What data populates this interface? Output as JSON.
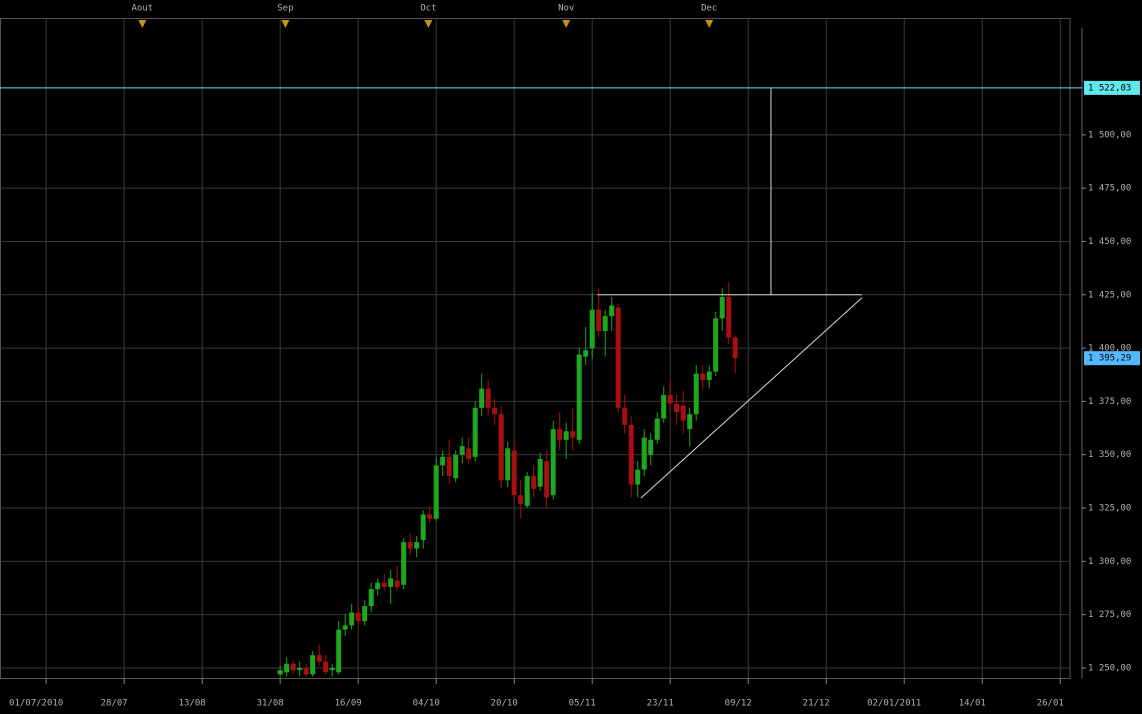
{
  "chart_data": {
    "type": "candlestick",
    "candles": {
      "x": [
        36,
        37,
        38,
        39,
        40,
        41,
        42,
        43,
        44,
        45,
        46,
        47,
        48,
        49,
        50,
        51,
        52,
        53,
        54,
        55,
        56,
        57,
        58,
        59,
        60,
        61,
        62,
        63,
        64,
        65,
        66,
        67,
        68,
        69,
        70,
        71,
        72,
        73,
        74,
        75,
        76,
        77,
        78,
        79,
        80,
        81,
        82,
        83,
        84,
        85,
        86,
        87,
        88,
        89,
        90,
        91,
        92,
        93,
        94,
        95,
        96,
        97,
        98,
        99,
        100,
        101,
        102,
        103,
        104,
        105,
        106
      ],
      "open": [
        1247,
        1248,
        1252,
        1249,
        1250,
        1247,
        1256,
        1253,
        1249,
        1248,
        1268,
        1270,
        1276,
        1272,
        1279,
        1287,
        1290,
        1288,
        1291,
        1289,
        1309,
        1306,
        1310,
        1322,
        1320,
        1345,
        1349,
        1339,
        1350,
        1353,
        1349,
        1372,
        1381,
        1372,
        1369,
        1338,
        1352,
        1331,
        1326,
        1340,
        1335,
        1347,
        1331,
        1362,
        1357,
        1361,
        1357,
        1396,
        1400,
        1418,
        1408,
        1415,
        1419,
        1372,
        1364,
        1336,
        1343,
        1350,
        1357,
        1367,
        1378,
        1374,
        1373,
        1362,
        1369,
        1388,
        1385,
        1389,
        1414,
        1424,
        1405
      ],
      "high": [
        1251,
        1255,
        1254,
        1253,
        1252,
        1258,
        1261,
        1256,
        1252,
        1272,
        1275,
        1280,
        1279,
        1282,
        1290,
        1292,
        1294,
        1296,
        1298,
        1311,
        1313,
        1312,
        1324,
        1326,
        1349,
        1352,
        1357,
        1352,
        1358,
        1358,
        1375,
        1388,
        1385,
        1376,
        1373,
        1356,
        1356,
        1338,
        1342,
        1345,
        1351,
        1352,
        1366,
        1370,
        1365,
        1372,
        1400,
        1410,
        1426,
        1428,
        1418,
        1424,
        1421,
        1378,
        1368,
        1347,
        1362,
        1360,
        1370,
        1382,
        1385,
        1378,
        1380,
        1372,
        1392,
        1392,
        1392,
        1417,
        1428,
        1431,
        1406
      ],
      "low": [
        1246,
        1246,
        1247,
        1246,
        1246,
        1246,
        1251,
        1247,
        1246,
        1247,
        1265,
        1268,
        1270,
        1270,
        1276,
        1284,
        1286,
        1280,
        1286,
        1287,
        1303,
        1302,
        1306,
        1318,
        1319,
        1340,
        1336,
        1337,
        1346,
        1346,
        1347,
        1368,
        1368,
        1364,
        1334,
        1335,
        1328,
        1320,
        1325,
        1330,
        1333,
        1325,
        1329,
        1352,
        1348,
        1352,
        1355,
        1392,
        1395,
        1405,
        1396,
        1408,
        1370,
        1360,
        1330,
        1330,
        1340,
        1345,
        1355,
        1365,
        1370,
        1364,
        1360,
        1354,
        1366,
        1381,
        1381,
        1387,
        1408,
        1402,
        1388
      ],
      "close": [
        1249,
        1252,
        1249,
        1250,
        1247,
        1256,
        1253,
        1248,
        1250,
        1268,
        1270,
        1276,
        1272,
        1279,
        1287,
        1290,
        1288,
        1292,
        1288,
        1309,
        1306,
        1309,
        1322,
        1320,
        1345,
        1349,
        1340,
        1350,
        1354,
        1348,
        1372,
        1381,
        1372,
        1369,
        1338,
        1353,
        1331,
        1327,
        1340,
        1334,
        1348,
        1330,
        1362,
        1357,
        1361,
        1358,
        1397,
        1399,
        1418,
        1408,
        1415,
        1420,
        1372,
        1364,
        1336,
        1343,
        1358,
        1357,
        1367,
        1378,
        1374,
        1370,
        1366,
        1369,
        1388,
        1385,
        1389,
        1414,
        1424,
        1405,
        1395.29
      ]
    },
    "up_color": "#1fa81f",
    "down_color": "#a80f0f",
    "xlim": [
      -7.1,
      157.5
    ],
    "xticks": [
      {
        "value": 0,
        "label": "01/07/2010"
      },
      {
        "value": 12,
        "label": "28/07"
      },
      {
        "value": 24,
        "label": "13/08"
      },
      {
        "value": 36,
        "label": "31/08"
      },
      {
        "value": 48,
        "label": "16/09"
      },
      {
        "value": 60,
        "label": "04/10"
      },
      {
        "value": 72,
        "label": "20/10"
      },
      {
        "value": 84,
        "label": "05/11"
      },
      {
        "value": 96,
        "label": "23/11"
      },
      {
        "value": 108,
        "label": "09/12"
      },
      {
        "value": 120,
        "label": "21/12"
      },
      {
        "value": 132,
        "label": "02/01/2011"
      },
      {
        "value": 144,
        "label": "14/01"
      },
      {
        "value": 156,
        "label": "26/01"
      }
    ],
    "month_markers": [
      {
        "value": 14.8,
        "label": "Aout"
      },
      {
        "value": 36.8,
        "label": "Sep"
      },
      {
        "value": 58.8,
        "label": "Oct"
      },
      {
        "value": 80,
        "label": "Nov"
      },
      {
        "value": 102,
        "label": "Dec"
      }
    ],
    "ylim": [
      1245.3,
      1554.8
    ],
    "yticks": [
      {
        "value": 1250,
        "label": "1 250,00"
      },
      {
        "value": 1275,
        "label": "1 275,00"
      },
      {
        "value": 1300,
        "label": "1 300,00"
      },
      {
        "value": 1325,
        "label": "1 325,00"
      },
      {
        "value": 1350,
        "label": "1 350,00"
      },
      {
        "value": 1375,
        "label": "1 375,00"
      },
      {
        "value": 1400,
        "label": "1 400,00"
      },
      {
        "value": 1425,
        "label": "1 425,00"
      },
      {
        "value": 1450,
        "label": "1 450,00"
      },
      {
        "value": 1475,
        "label": "1 475,00"
      },
      {
        "value": 1500,
        "label": "1 500,00"
      }
    ],
    "price_tags": [
      {
        "value": 1522.03,
        "label": "1 522,03",
        "color": "#5fe8ee",
        "line": true
      },
      {
        "value": 1395.29,
        "label": "1 395,29",
        "color": "#55b8ff",
        "line": false
      }
    ],
    "lines": [
      {
        "x": [
          84.8,
          125.5
        ],
        "y": [
          1425,
          1425
        ]
      },
      {
        "x": [
          91.5,
          125.5
        ],
        "y": [
          1329.7,
          1423.6
        ]
      },
      {
        "x": [
          111.5,
          111.5
        ],
        "y": [
          1522.03,
          1425
        ]
      }
    ],
    "line_color": "#d8d8d8",
    "grid": true
  }
}
